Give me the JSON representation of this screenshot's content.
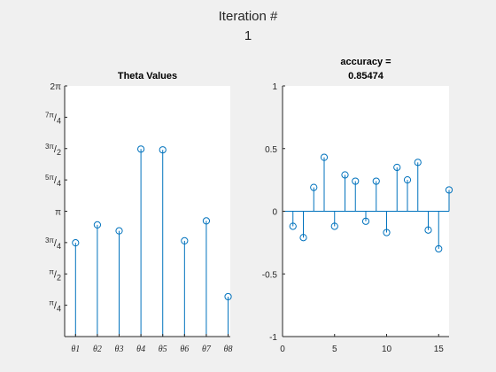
{
  "figure": {
    "suptitle_line1": "Iteration #",
    "suptitle_line2": "1"
  },
  "chart_data": [
    {
      "type": "stem",
      "title": "Theta Values",
      "x": [
        1,
        2,
        3,
        4,
        5,
        6,
        7,
        8
      ],
      "categories": [
        "θ1",
        "θ2",
        "θ3",
        "θ4",
        "θ5",
        "θ6",
        "θ7",
        "θ8"
      ],
      "values": [
        2.35,
        2.8,
        2.65,
        4.7,
        4.68,
        2.4,
        2.9,
        1.0
      ],
      "ylim": [
        0,
        6.283185307
      ],
      "xlim": [
        0.5,
        8.1
      ],
      "yticks": [
        {
          "value": 0.785398,
          "num": "π",
          "den": "4"
        },
        {
          "value": 1.570796,
          "num": "π",
          "den": "2"
        },
        {
          "value": 2.356194,
          "num": "3π",
          "den": "4"
        },
        {
          "value": 3.141593,
          "label": "π"
        },
        {
          "value": 3.926991,
          "num": "5π",
          "den": "4"
        },
        {
          "value": 4.712389,
          "num": "3π",
          "den": "2"
        },
        {
          "value": 5.497787,
          "num": "7π",
          "den": "4"
        },
        {
          "value": 6.283185,
          "label": "2π"
        }
      ],
      "color": "#0072bd",
      "grid": false
    },
    {
      "type": "stem",
      "title": "accuracy =\n0.85474",
      "title_line1": "accuracy =",
      "title_line2": "0.85474",
      "x": [
        1,
        2,
        3,
        4,
        5,
        6,
        7,
        8,
        9,
        10,
        11,
        12,
        13,
        14,
        15,
        16
      ],
      "values": [
        -0.12,
        -0.21,
        0.19,
        0.43,
        -0.12,
        0.29,
        0.24,
        -0.08,
        0.24,
        -0.17,
        0.35,
        0.25,
        0.39,
        -0.15,
        -0.3,
        0.17
      ],
      "xlim": [
        0,
        16
      ],
      "ylim": [
        -1,
        1
      ],
      "xticks": [
        0,
        5,
        10,
        15
      ],
      "yticks": [
        -1,
        -0.5,
        0,
        0.5,
        1
      ],
      "ytick_labels": [
        "-1",
        "-0.5",
        "0",
        "0.5",
        "1"
      ],
      "color": "#0072bd",
      "grid": false
    }
  ]
}
